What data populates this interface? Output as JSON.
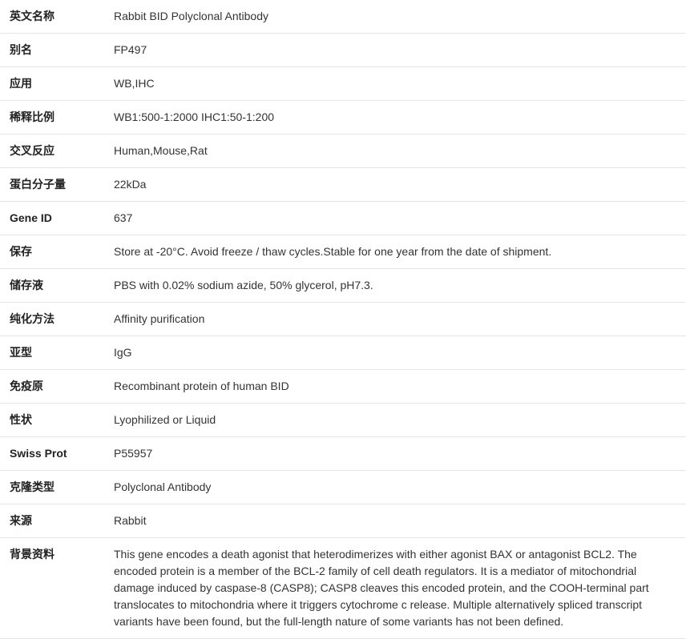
{
  "table": {
    "background_color": "#ffffff",
    "border_color": "#e5e5e5",
    "label_color": "#222222",
    "value_color": "#333333",
    "label_fontweight": "bold",
    "font_size": 14,
    "label_width": 130,
    "row_padding": "10px 12px",
    "rows": [
      {
        "label": "英文名称",
        "value": "Rabbit BID Polyclonal Antibody"
      },
      {
        "label": "别名",
        "value": "FP497"
      },
      {
        "label": "应用",
        "value": "WB,IHC"
      },
      {
        "label": "稀释比例",
        "value": "WB1:500-1:2000 IHC1:50-1:200"
      },
      {
        "label": "交叉反应",
        "value": "Human,Mouse,Rat"
      },
      {
        "label": "蛋白分子量",
        "value": "22kDa"
      },
      {
        "label": "Gene ID",
        "value": "637"
      },
      {
        "label": "保存",
        "value": "Store at -20°C. Avoid freeze / thaw cycles.Stable for one year from the date of shipment."
      },
      {
        "label": "储存液",
        "value": "PBS with 0.02% sodium azide, 50% glycerol, pH7.3."
      },
      {
        "label": "纯化方法",
        "value": "Affinity purification"
      },
      {
        "label": "亚型",
        "value": "IgG"
      },
      {
        "label": "免疫原",
        "value": "Recombinant protein of human BID"
      },
      {
        "label": "性状",
        "value": "Lyophilized or Liquid"
      },
      {
        "label": "Swiss Prot",
        "value": "P55957"
      },
      {
        "label": "克隆类型",
        "value": "Polyclonal Antibody"
      },
      {
        "label": "来源",
        "value": "Rabbit"
      },
      {
        "label": "背景资料",
        "value": "This gene encodes a death agonist that heterodimerizes with either agonist BAX or antagonist BCL2. The encoded protein is a member of the BCL-2 family of cell death regulators. It is a mediator of mitochondrial damage induced by caspase-8 (CASP8); CASP8 cleaves this encoded protein, and the COOH-terminal part translocates to mitochondria where it triggers cytochrome c release. Multiple alternatively spliced transcript variants have been found, but the full-length nature of some variants has not been defined."
      }
    ]
  }
}
